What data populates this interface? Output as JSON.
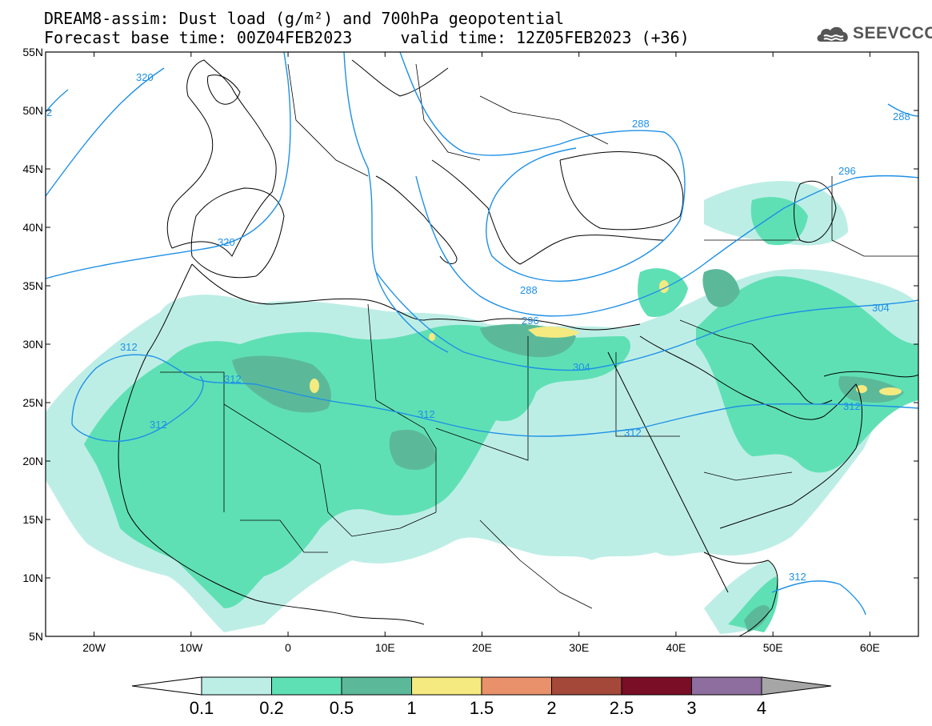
{
  "title": {
    "line1": "DREAM8-assim: Dust load (g/m²) and 700hPa geopotential",
    "line2": "Forecast base time: 00Z04FEB2023     valid time: 12Z05FEB2023 (+36)"
  },
  "logo": {
    "text": "SEEVCCC",
    "icon": "cloud-icon",
    "color": "#555555"
  },
  "map": {
    "lon_range": [
      -25,
      65
    ],
    "lat_range": [
      5,
      55
    ],
    "lat_ticks": [
      "55N",
      "50N",
      "45N",
      "40N",
      "35N",
      "30N",
      "25N",
      "20N",
      "15N",
      "10N",
      "5N"
    ],
    "lat_values": [
      55,
      50,
      45,
      40,
      35,
      30,
      25,
      20,
      15,
      10,
      5
    ],
    "lon_ticks": [
      "20W",
      "10W",
      "0",
      "10E",
      "20E",
      "30E",
      "40E",
      "50E",
      "60E"
    ],
    "lon_values": [
      -20,
      -10,
      0,
      10,
      20,
      30,
      40,
      50,
      60
    ],
    "contour_color": "#1e90e6",
    "contour_labels": [
      "320",
      "2",
      "320",
      "288",
      "288",
      "296",
      "288",
      "296",
      "304",
      "304",
      "312",
      "312",
      "312",
      "312",
      "312",
      "312",
      "312"
    ]
  },
  "colorbar": {
    "levels": [
      "0.1",
      "0.2",
      "0.5",
      "1",
      "1.5",
      "2",
      "2.5",
      "3",
      "4"
    ],
    "colors": [
      "#ffffff",
      "#bdeee6",
      "#5fe0b4",
      "#5bb99a",
      "#f5ea80",
      "#e9916a",
      "#a4483a",
      "#7a0e27",
      "#8e6d9f",
      "#a6a6a6"
    ]
  }
}
